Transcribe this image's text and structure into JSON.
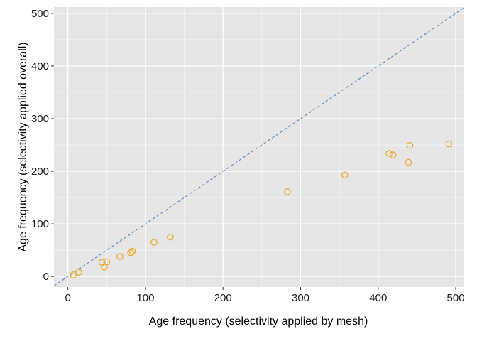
{
  "chart_data": {
    "type": "scatter",
    "xlabel": "Age frequency (selectivity applied by mesh)",
    "ylabel": "Age frequency (selectivity applied overall)",
    "xlim": [
      -18,
      510
    ],
    "ylim": [
      -20,
      512
    ],
    "x_ticks": [
      0,
      100,
      200,
      300,
      400,
      500
    ],
    "y_ticks": [
      0,
      100,
      200,
      300,
      400,
      500
    ],
    "grid": true,
    "legend": "none",
    "colors": {
      "panel": "#e5e5e5",
      "grid": "#ffffff",
      "points": "#f5a623",
      "reference_line": "#4a86c8"
    },
    "points": [
      {
        "x": 7,
        "y": 3
      },
      {
        "x": 14,
        "y": 8
      },
      {
        "x": 44,
        "y": 27
      },
      {
        "x": 47,
        "y": 18
      },
      {
        "x": 50,
        "y": 28
      },
      {
        "x": 67,
        "y": 38
      },
      {
        "x": 81,
        "y": 45
      },
      {
        "x": 83,
        "y": 48
      },
      {
        "x": 111,
        "y": 65
      },
      {
        "x": 132,
        "y": 75
      },
      {
        "x": 283,
        "y": 161
      },
      {
        "x": 357,
        "y": 193
      },
      {
        "x": 414,
        "y": 234
      },
      {
        "x": 419,
        "y": 231
      },
      {
        "x": 439,
        "y": 217
      },
      {
        "x": 441,
        "y": 249
      },
      {
        "x": 491,
        "y": 252
      }
    ],
    "reference_line": {
      "slope": 1,
      "intercept": 0,
      "style": "dashed"
    }
  }
}
